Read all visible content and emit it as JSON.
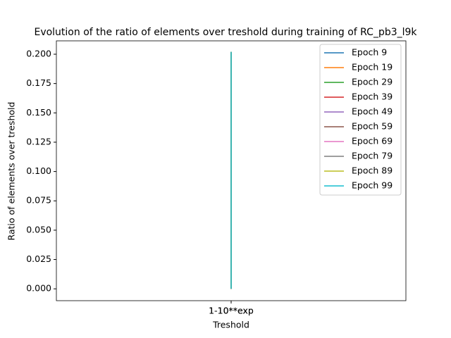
{
  "chart_data": {
    "type": "line",
    "title": "Evolution of the ratio of elements over treshold during training of RC_pb3_l9k",
    "xlabel": "Treshold",
    "ylabel": "Ratio of elements over treshold",
    "categories": [
      "1-10**exp",
      "1-10**exp"
    ],
    "series": [
      {
        "name": "Epoch 9",
        "color": "#1f77b4",
        "values": [
          0,
          0.202
        ]
      },
      {
        "name": "Epoch 19",
        "color": "#ff7f0e",
        "values": [
          0,
          0.202
        ]
      },
      {
        "name": "Epoch 29",
        "color": "#2ca02c",
        "values": [
          0,
          0.202
        ]
      },
      {
        "name": "Epoch 39",
        "color": "#d62728",
        "values": [
          0,
          0.202
        ]
      },
      {
        "name": "Epoch 49",
        "color": "#9467bd",
        "values": [
          0,
          0.202
        ]
      },
      {
        "name": "Epoch 59",
        "color": "#8c564b",
        "values": [
          0,
          0.202
        ]
      },
      {
        "name": "Epoch 69",
        "color": "#e377c2",
        "values": [
          0,
          0.202
        ]
      },
      {
        "name": "Epoch 79",
        "color": "#7f7f7f",
        "values": [
          0,
          0.202
        ]
      },
      {
        "name": "Epoch 89",
        "color": "#bcbd22",
        "values": [
          0,
          0.202
        ]
      },
      {
        "name": "Epoch 99",
        "color": "#17becf",
        "values": [
          0,
          0.202
        ]
      }
    ],
    "ylim": [
      -0.0101,
      0.2114
    ],
    "yticks": [
      {
        "value": 0,
        "label": "0.000"
      },
      {
        "value": 0.025,
        "label": "0.025"
      },
      {
        "value": 0.05,
        "label": "0.050"
      },
      {
        "value": 0.075,
        "label": "0.075"
      },
      {
        "value": 0.1,
        "label": "0.100"
      },
      {
        "value": 0.125,
        "label": "0.125"
      },
      {
        "value": 0.15,
        "label": "0.150"
      },
      {
        "value": 0.175,
        "label": "0.175"
      },
      {
        "value": 0.2,
        "label": "0.200"
      }
    ],
    "grid": false,
    "legend": "upper right"
  }
}
